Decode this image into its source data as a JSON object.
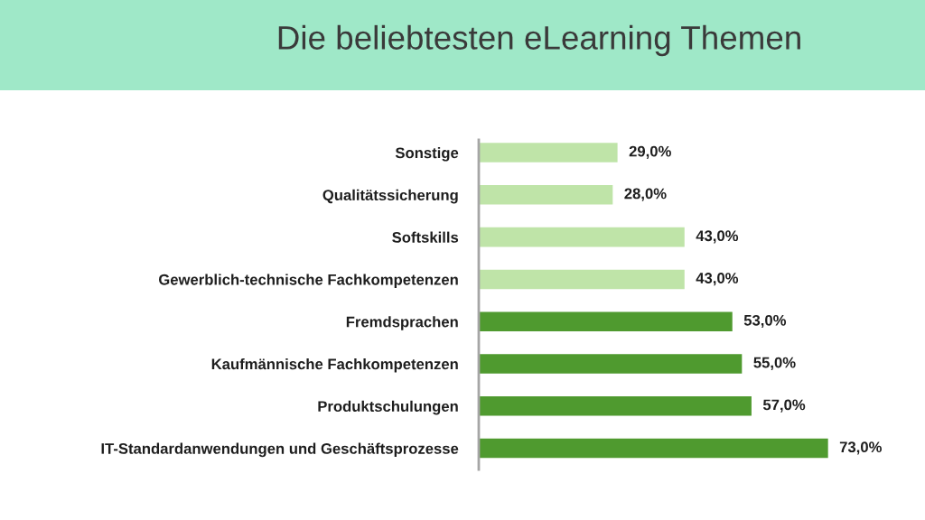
{
  "chart_data": {
    "type": "bar",
    "orientation": "horizontal",
    "title": "Die beliebtesten eLearning Themen",
    "categories": [
      "Sonstige",
      "Qualitätssicherung",
      "Softskills",
      "Gewerblich-technische Fachkompetenzen",
      "Fremdsprachen",
      "Kaufmännische Fachkompetenzen",
      "Produktschulungen",
      "IT-Standardanwendungen und Geschäftsprozesse"
    ],
    "values": [
      29,
      28,
      43,
      43,
      53,
      55,
      57,
      73
    ],
    "value_labels": [
      "29,0%",
      "28,0%",
      "43,0%",
      "43,0%",
      "53,0%",
      "55,0%",
      "57,0%",
      "73,0%"
    ],
    "colors": [
      "#bfe4a8",
      "#bfe4a8",
      "#bfe4a8",
      "#bfe4a8",
      "#4f9a2f",
      "#4f9a2f",
      "#4f9a2f",
      "#4f9a2f"
    ],
    "tick_labels": "y"
  }
}
